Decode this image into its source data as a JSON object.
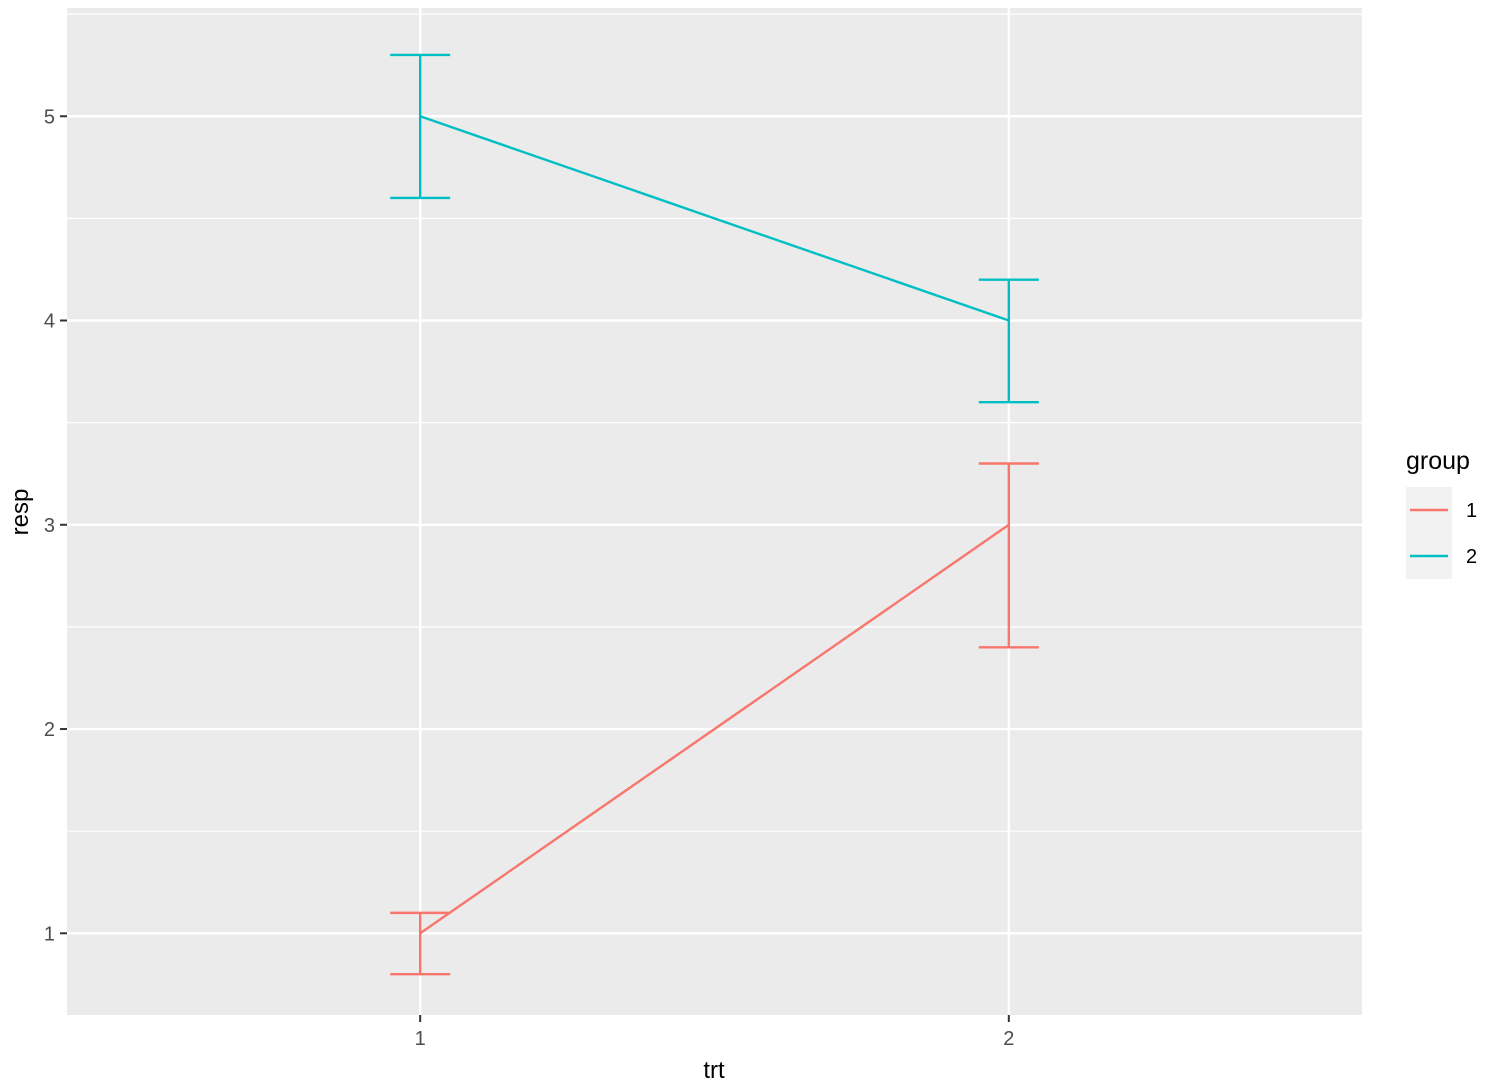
{
  "chart_data": {
    "type": "line",
    "title": "",
    "xlabel": "trt",
    "ylabel": "resp",
    "x": [
      1,
      2
    ],
    "x_tick_labels": [
      "1",
      "2"
    ],
    "y_ticks": [
      1,
      2,
      3,
      4,
      5
    ],
    "y_tick_labels": [
      "1",
      "2",
      "3",
      "4",
      "5"
    ],
    "xlim": [
      0.4,
      2.6
    ],
    "ylim": [
      0.6,
      5.53
    ],
    "grid": true,
    "legend": {
      "title": "group",
      "placement": "right"
    },
    "series": [
      {
        "name": "1",
        "color": "#F8766D",
        "values": [
          1,
          3
        ],
        "lower": [
          0.8,
          2.4
        ],
        "upper": [
          1.1,
          3.3
        ]
      },
      {
        "name": "2",
        "color": "#00BFC4",
        "values": [
          5,
          4
        ],
        "lower": [
          4.6,
          3.6
        ],
        "upper": [
          5.3,
          4.2
        ]
      }
    ],
    "colors": {
      "panel": "#EBEBEB",
      "grid": "#FFFFFF",
      "legend_key": "#F2F2F2"
    }
  }
}
